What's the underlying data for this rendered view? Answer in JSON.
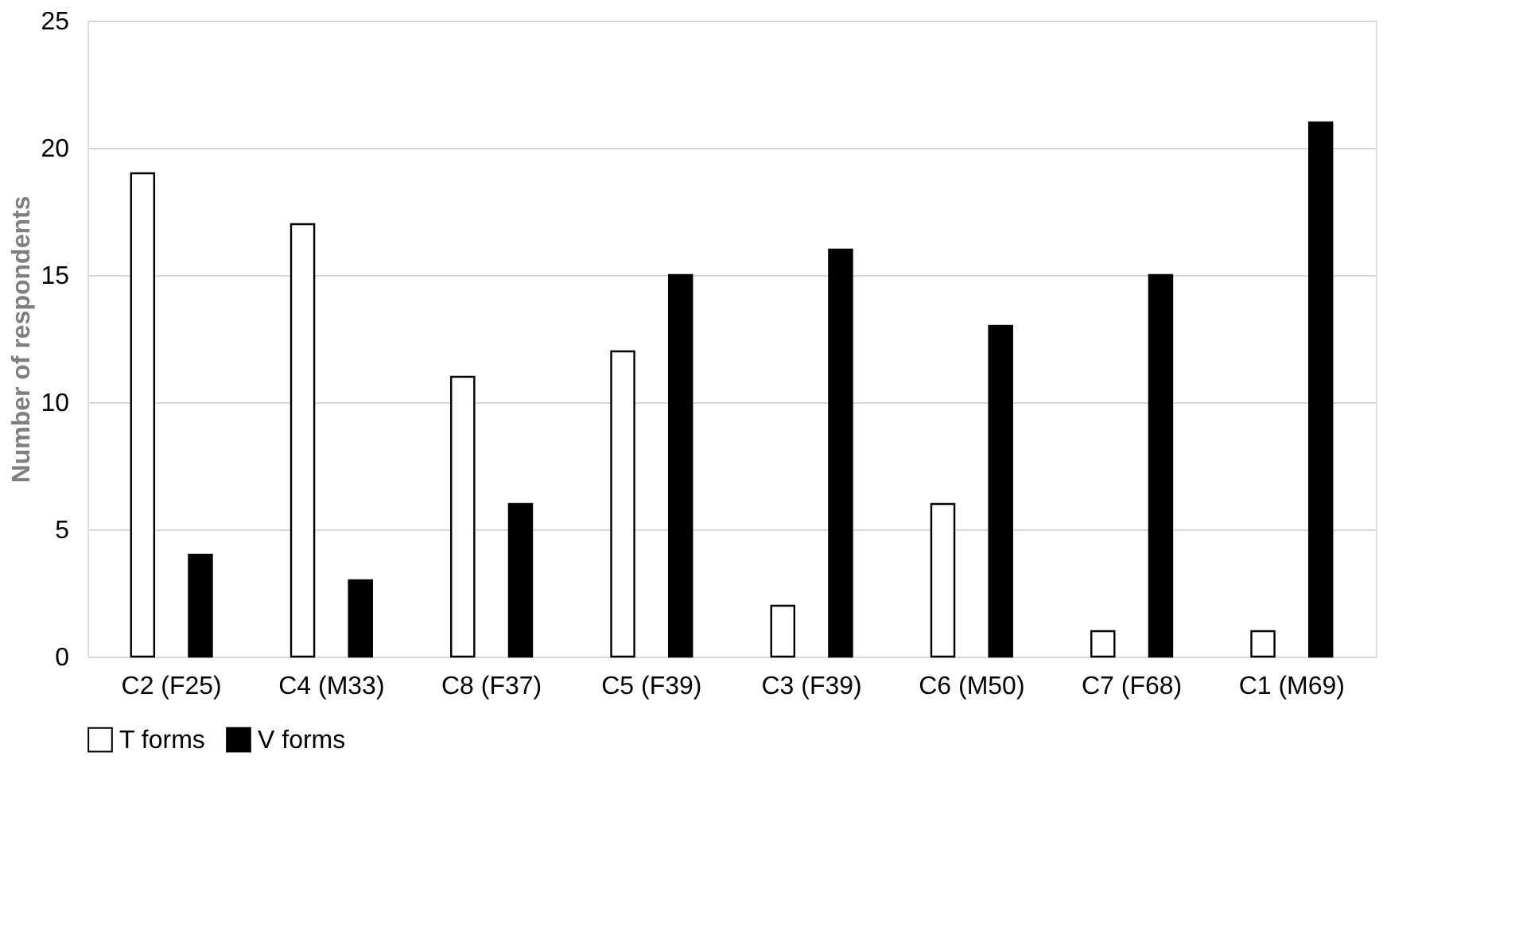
{
  "chart_data": {
    "type": "bar",
    "ylabel": "Number of respondents",
    "categories": [
      "C2 (F25)",
      "C4 (M33)",
      "C8 (F37)",
      "C5 (F39)",
      "C3 (F39)",
      "C6 (M50)",
      "C7 (F68)",
      "C1 (M69)"
    ],
    "series": [
      {
        "name": "T forms",
        "color": "#ffffff",
        "values": [
          19,
          17,
          11,
          12,
          2,
          6,
          1,
          1
        ]
      },
      {
        "name": "V forms",
        "color": "#000000",
        "values": [
          4,
          3,
          6,
          15,
          16,
          13,
          15,
          21
        ]
      }
    ],
    "ylim": [
      0,
      25
    ],
    "yticks": [
      0,
      5,
      10,
      15,
      20,
      25
    ],
    "grid": "y",
    "legend": "bottom"
  }
}
